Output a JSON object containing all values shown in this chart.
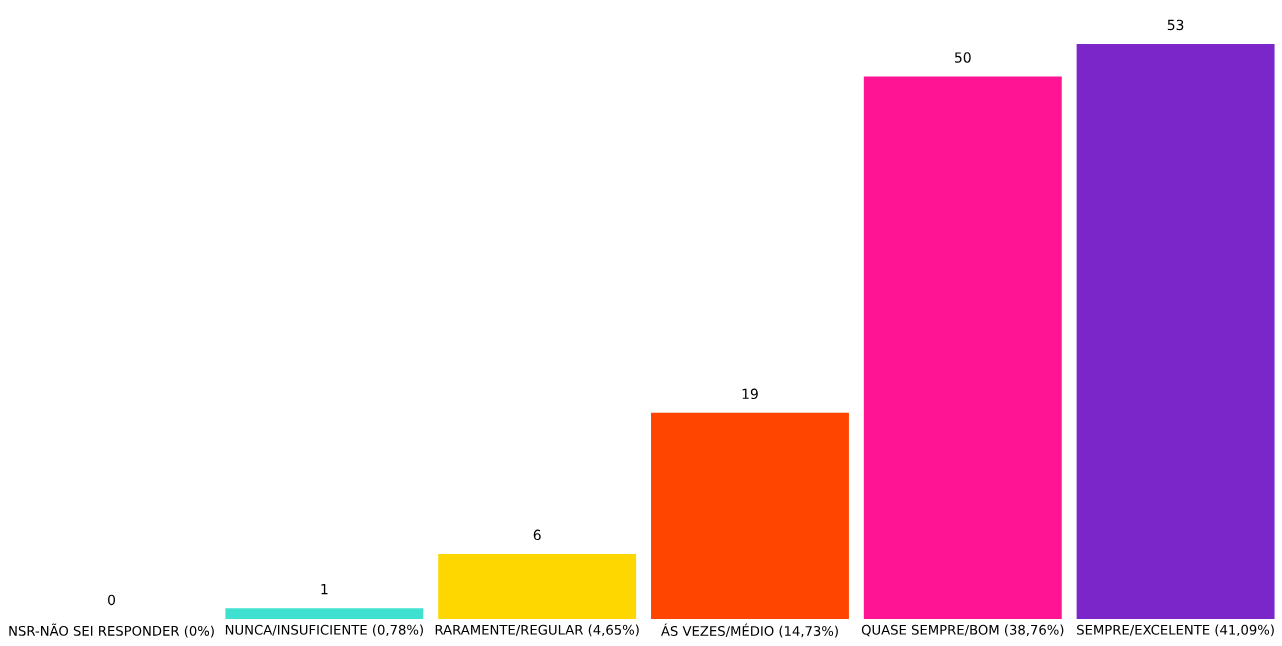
{
  "chart_data": {
    "type": "bar",
    "categories": [
      "NSR-NÃO SEI RESPONDER (0%)",
      "NUNCA/INSUFICIENTE (0,78%)",
      "RARAMENTE/REGULAR (4,65%)",
      "ÁS VEZES/MÉDIO (14,73%)",
      "QUASE SEMPRE/BOM (38,76%)",
      "SEMPRE/EXCELENTE (41,09%)"
    ],
    "values": [
      0,
      1,
      6,
      19,
      50,
      53
    ],
    "colors": [
      "#9e9e9e",
      "#40e0d0",
      "#ffd700",
      "#ff4500",
      "#ff1493",
      "#7b26c9"
    ],
    "data_labels": true
  }
}
